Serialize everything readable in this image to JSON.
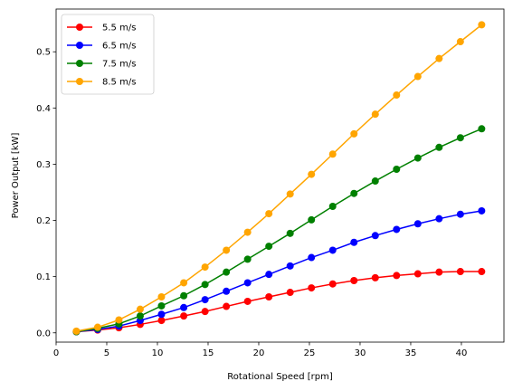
{
  "chart_data": {
    "type": "line",
    "title": "",
    "xlabel": "Rotational Speed [rpm]",
    "ylabel": "Power Output [kW]",
    "xlim": [
      0,
      44.2
    ],
    "ylim": [
      -0.0165,
      0.576
    ],
    "xticks": [
      0,
      5,
      10,
      15,
      20,
      25,
      30,
      35,
      40
    ],
    "yticks": [
      0.0,
      0.1,
      0.2,
      0.3,
      0.4,
      0.5
    ],
    "xtick_labels": [
      "0",
      "5",
      "10",
      "15",
      "20",
      "25",
      "30",
      "35",
      "40"
    ],
    "ytick_labels": [
      "0.0",
      "0.1",
      "0.2",
      "0.3",
      "0.4",
      "0.5"
    ],
    "grid": false,
    "legend_position": "upper-left",
    "marker": "circle",
    "x": [
      2.0,
      4.1,
      6.2,
      8.3,
      10.4,
      12.6,
      14.7,
      16.8,
      18.9,
      21.0,
      23.1,
      25.2,
      27.3,
      29.4,
      31.5,
      33.6,
      35.7,
      37.8,
      39.9,
      42.0
    ],
    "series": [
      {
        "name": "5.5 m/s",
        "color": "#ff0000",
        "values": [
          0.002,
          0.005,
          0.009,
          0.015,
          0.022,
          0.03,
          0.038,
          0.047,
          0.056,
          0.064,
          0.072,
          0.08,
          0.087,
          0.093,
          0.098,
          0.102,
          0.105,
          0.108,
          0.109,
          0.109
        ]
      },
      {
        "name": "6.5 m/s",
        "color": "#0000ff",
        "values": [
          0.002,
          0.006,
          0.012,
          0.022,
          0.033,
          0.045,
          0.059,
          0.074,
          0.089,
          0.104,
          0.119,
          0.134,
          0.147,
          0.161,
          0.173,
          0.184,
          0.194,
          0.203,
          0.211,
          0.217
        ]
      },
      {
        "name": "7.5 m/s",
        "color": "#008000",
        "values": [
          0.002,
          0.008,
          0.016,
          0.03,
          0.048,
          0.066,
          0.086,
          0.108,
          0.131,
          0.154,
          0.177,
          0.201,
          0.225,
          0.248,
          0.27,
          0.291,
          0.311,
          0.33,
          0.347,
          0.363
        ]
      },
      {
        "name": "8.5 m/s",
        "color": "#ffa500",
        "values": [
          0.003,
          0.01,
          0.023,
          0.042,
          0.064,
          0.089,
          0.117,
          0.147,
          0.179,
          0.212,
          0.247,
          0.282,
          0.318,
          0.354,
          0.389,
          0.423,
          0.456,
          0.488,
          0.518,
          0.548
        ]
      }
    ]
  }
}
